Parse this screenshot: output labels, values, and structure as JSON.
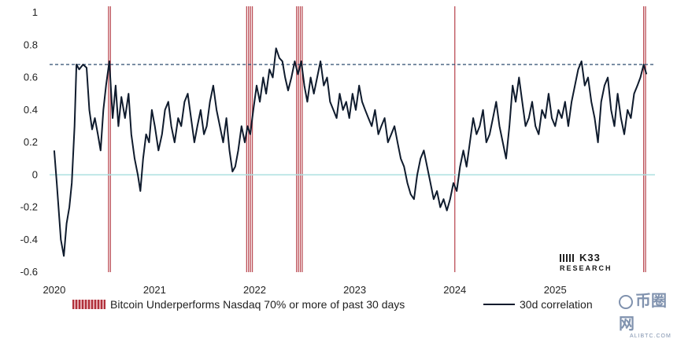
{
  "chart_data": {
    "type": "line",
    "title": "",
    "xlabel": "",
    "ylabel": "",
    "ylim": [
      -0.6,
      1.0
    ],
    "xlim": [
      "2019-12-15",
      "2025-12-31"
    ],
    "y_ticks": [
      1,
      0.8,
      0.6,
      0.4,
      0.2,
      0,
      -0.2,
      -0.4,
      -0.6
    ],
    "y_tick_labels": [
      "1",
      "0.8",
      "0.6",
      "0.4",
      "0.2",
      "0",
      "-0.2",
      "-0.4",
      "-0.6"
    ],
    "x_ticks": [
      "2020-01-01",
      "2021-01-01",
      "2022-01-01",
      "2023-01-01",
      "2024-01-01",
      "2025-01-01"
    ],
    "x_tick_labels": [
      "2020",
      "2021",
      "2022",
      "2023",
      "2024",
      "2025"
    ],
    "reference_line": {
      "y": 0.68,
      "style": "dashed"
    },
    "legend": {
      "placement": "bottom",
      "entries": [
        "Bitcoin Underperforms Nasdaq 70% or more of past 30 days",
        "30d correlation"
      ]
    },
    "shaded_periods": [
      {
        "start": "2020-07-15",
        "end": "2020-07-23"
      },
      {
        "start": "2021-12-01",
        "end": "2021-12-22"
      },
      {
        "start": "2022-06-01",
        "end": "2022-06-28"
      },
      {
        "start": "2023-12-30",
        "end": "2024-01-04"
      },
      {
        "start": "2025-11-18",
        "end": "2025-11-26"
      }
    ],
    "series": [
      {
        "name": "30d correlation",
        "color": "#0f1b2d",
        "points": [
          [
            "2020-01-01",
            0.15
          ],
          [
            "2020-01-10",
            -0.05
          ],
          [
            "2020-01-25",
            -0.4
          ],
          [
            "2020-02-05",
            -0.5
          ],
          [
            "2020-02-15",
            -0.3
          ],
          [
            "2020-02-25",
            -0.2
          ],
          [
            "2020-03-05",
            -0.05
          ],
          [
            "2020-03-15",
            0.3
          ],
          [
            "2020-03-22",
            0.68
          ],
          [
            "2020-04-01",
            0.65
          ],
          [
            "2020-04-15",
            0.68
          ],
          [
            "2020-04-28",
            0.66
          ],
          [
            "2020-05-08",
            0.4
          ],
          [
            "2020-05-18",
            0.28
          ],
          [
            "2020-05-28",
            0.35
          ],
          [
            "2020-06-08",
            0.25
          ],
          [
            "2020-06-18",
            0.15
          ],
          [
            "2020-06-28",
            0.4
          ],
          [
            "2020-07-08",
            0.55
          ],
          [
            "2020-07-20",
            0.7
          ],
          [
            "2020-08-01",
            0.35
          ],
          [
            "2020-08-12",
            0.55
          ],
          [
            "2020-08-22",
            0.3
          ],
          [
            "2020-09-02",
            0.48
          ],
          [
            "2020-09-15",
            0.35
          ],
          [
            "2020-09-28",
            0.5
          ],
          [
            "2020-10-08",
            0.25
          ],
          [
            "2020-10-20",
            0.1
          ],
          [
            "2020-11-01",
            0.0
          ],
          [
            "2020-11-10",
            -0.1
          ],
          [
            "2020-11-20",
            0.1
          ],
          [
            "2020-12-01",
            0.25
          ],
          [
            "2020-12-12",
            0.2
          ],
          [
            "2020-12-22",
            0.4
          ],
          [
            "2021-01-02",
            0.3
          ],
          [
            "2021-01-15",
            0.15
          ],
          [
            "2021-01-28",
            0.25
          ],
          [
            "2021-02-08",
            0.4
          ],
          [
            "2021-02-20",
            0.45
          ],
          [
            "2021-03-03",
            0.3
          ],
          [
            "2021-03-15",
            0.2
          ],
          [
            "2021-03-28",
            0.35
          ],
          [
            "2021-04-08",
            0.3
          ],
          [
            "2021-04-20",
            0.45
          ],
          [
            "2021-05-02",
            0.5
          ],
          [
            "2021-05-14",
            0.35
          ],
          [
            "2021-05-26",
            0.2
          ],
          [
            "2021-06-06",
            0.3
          ],
          [
            "2021-06-18",
            0.4
          ],
          [
            "2021-06-30",
            0.25
          ],
          [
            "2021-07-10",
            0.3
          ],
          [
            "2021-07-22",
            0.45
          ],
          [
            "2021-08-03",
            0.55
          ],
          [
            "2021-08-15",
            0.4
          ],
          [
            "2021-08-27",
            0.3
          ],
          [
            "2021-09-08",
            0.2
          ],
          [
            "2021-09-20",
            0.35
          ],
          [
            "2021-10-01",
            0.15
          ],
          [
            "2021-10-12",
            0.02
          ],
          [
            "2021-10-22",
            0.05
          ],
          [
            "2021-11-02",
            0.15
          ],
          [
            "2021-11-14",
            0.3
          ],
          [
            "2021-11-26",
            0.2
          ],
          [
            "2021-12-06",
            0.3
          ],
          [
            "2021-12-16",
            0.25
          ],
          [
            "2021-12-27",
            0.4
          ],
          [
            "2022-01-08",
            0.55
          ],
          [
            "2022-01-20",
            0.45
          ],
          [
            "2022-02-01",
            0.6
          ],
          [
            "2022-02-12",
            0.5
          ],
          [
            "2022-02-24",
            0.65
          ],
          [
            "2022-03-08",
            0.6
          ],
          [
            "2022-03-20",
            0.78
          ],
          [
            "2022-04-01",
            0.72
          ],
          [
            "2022-04-12",
            0.7
          ],
          [
            "2022-04-22",
            0.6
          ],
          [
            "2022-05-03",
            0.52
          ],
          [
            "2022-05-15",
            0.6
          ],
          [
            "2022-05-27",
            0.7
          ],
          [
            "2022-06-08",
            0.62
          ],
          [
            "2022-06-20",
            0.7
          ],
          [
            "2022-07-01",
            0.55
          ],
          [
            "2022-07-12",
            0.45
          ],
          [
            "2022-07-24",
            0.6
          ],
          [
            "2022-08-05",
            0.5
          ],
          [
            "2022-08-17",
            0.6
          ],
          [
            "2022-08-29",
            0.7
          ],
          [
            "2022-09-10",
            0.55
          ],
          [
            "2022-09-22",
            0.6
          ],
          [
            "2022-10-03",
            0.45
          ],
          [
            "2022-10-15",
            0.4
          ],
          [
            "2022-10-27",
            0.35
          ],
          [
            "2022-11-07",
            0.5
          ],
          [
            "2022-11-19",
            0.4
          ],
          [
            "2022-12-01",
            0.45
          ],
          [
            "2022-12-12",
            0.35
          ],
          [
            "2022-12-24",
            0.5
          ],
          [
            "2023-01-05",
            0.4
          ],
          [
            "2023-01-17",
            0.55
          ],
          [
            "2023-01-28",
            0.45
          ],
          [
            "2023-02-08",
            0.4
          ],
          [
            "2023-02-20",
            0.35
          ],
          [
            "2023-03-04",
            0.3
          ],
          [
            "2023-03-16",
            0.4
          ],
          [
            "2023-03-28",
            0.25
          ],
          [
            "2023-04-08",
            0.3
          ],
          [
            "2023-04-20",
            0.35
          ],
          [
            "2023-05-02",
            0.2
          ],
          [
            "2023-05-14",
            0.25
          ],
          [
            "2023-05-26",
            0.3
          ],
          [
            "2023-06-06",
            0.2
          ],
          [
            "2023-06-18",
            0.1
          ],
          [
            "2023-06-30",
            0.05
          ],
          [
            "2023-07-12",
            -0.05
          ],
          [
            "2023-07-24",
            -0.12
          ],
          [
            "2023-08-05",
            -0.15
          ],
          [
            "2023-08-17",
            0.0
          ],
          [
            "2023-08-29",
            0.1
          ],
          [
            "2023-09-10",
            0.15
          ],
          [
            "2023-09-22",
            0.05
          ],
          [
            "2023-10-04",
            -0.05
          ],
          [
            "2023-10-16",
            -0.15
          ],
          [
            "2023-10-28",
            -0.1
          ],
          [
            "2023-11-09",
            -0.2
          ],
          [
            "2023-11-21",
            -0.15
          ],
          [
            "2023-12-03",
            -0.22
          ],
          [
            "2023-12-15",
            -0.15
          ],
          [
            "2023-12-27",
            -0.05
          ],
          [
            "2024-01-08",
            -0.1
          ],
          [
            "2024-01-20",
            0.05
          ],
          [
            "2024-02-01",
            0.15
          ],
          [
            "2024-02-13",
            0.05
          ],
          [
            "2024-02-25",
            0.2
          ],
          [
            "2024-03-08",
            0.35
          ],
          [
            "2024-03-20",
            0.25
          ],
          [
            "2024-04-01",
            0.3
          ],
          [
            "2024-04-13",
            0.4
          ],
          [
            "2024-04-25",
            0.2
          ],
          [
            "2024-05-07",
            0.25
          ],
          [
            "2024-05-19",
            0.35
          ],
          [
            "2024-05-31",
            0.45
          ],
          [
            "2024-06-12",
            0.3
          ],
          [
            "2024-06-24",
            0.2
          ],
          [
            "2024-07-06",
            0.1
          ],
          [
            "2024-07-18",
            0.3
          ],
          [
            "2024-07-30",
            0.55
          ],
          [
            "2024-08-10",
            0.45
          ],
          [
            "2024-08-22",
            0.6
          ],
          [
            "2024-09-03",
            0.45
          ],
          [
            "2024-09-15",
            0.3
          ],
          [
            "2024-09-27",
            0.35
          ],
          [
            "2024-10-09",
            0.45
          ],
          [
            "2024-10-21",
            0.3
          ],
          [
            "2024-11-02",
            0.25
          ],
          [
            "2024-11-14",
            0.4
          ],
          [
            "2024-11-26",
            0.35
          ],
          [
            "2024-12-08",
            0.5
          ],
          [
            "2024-12-20",
            0.35
          ],
          [
            "2025-01-01",
            0.3
          ],
          [
            "2025-01-13",
            0.4
          ],
          [
            "2025-01-25",
            0.35
          ],
          [
            "2025-02-06",
            0.45
          ],
          [
            "2025-02-18",
            0.3
          ],
          [
            "2025-03-02",
            0.45
          ],
          [
            "2025-03-14",
            0.55
          ],
          [
            "2025-03-26",
            0.65
          ],
          [
            "2025-04-07",
            0.7
          ],
          [
            "2025-04-19",
            0.55
          ],
          [
            "2025-05-01",
            0.6
          ],
          [
            "2025-05-13",
            0.45
          ],
          [
            "2025-05-25",
            0.35
          ],
          [
            "2025-06-06",
            0.2
          ],
          [
            "2025-06-18",
            0.45
          ],
          [
            "2025-06-30",
            0.55
          ],
          [
            "2025-07-12",
            0.6
          ],
          [
            "2025-07-24",
            0.4
          ],
          [
            "2025-08-05",
            0.3
          ],
          [
            "2025-08-17",
            0.5
          ],
          [
            "2025-08-29",
            0.35
          ],
          [
            "2025-09-10",
            0.25
          ],
          [
            "2025-09-22",
            0.4
          ],
          [
            "2025-10-04",
            0.35
          ],
          [
            "2025-10-16",
            0.5
          ],
          [
            "2025-10-28",
            0.55
          ],
          [
            "2025-11-08",
            0.6
          ],
          [
            "2025-11-20",
            0.68
          ],
          [
            "2025-11-30",
            0.62
          ]
        ]
      }
    ]
  },
  "legend_labels": {
    "shaded": "Bitcoin Underperforms Nasdaq 70% or more of past 30 days",
    "line": "30d correlation"
  },
  "logo": {
    "top": "K33",
    "sub": "RESEARCH"
  },
  "watermark": {
    "logo": "币圈网",
    "sub": "ALIBTC.COM"
  },
  "colors": {
    "line": "#0f1b2d",
    "shade": "#b0303a",
    "dashed": "#2a4a6e",
    "zero": "#aee0e0"
  }
}
